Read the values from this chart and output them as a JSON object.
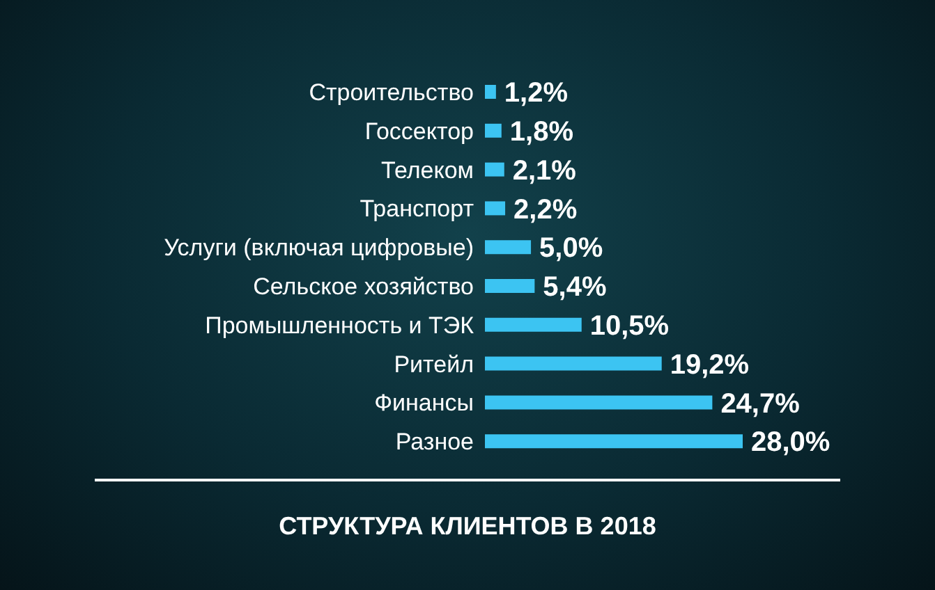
{
  "chart_data": {
    "type": "bar",
    "orientation": "horizontal",
    "title": "СТРУКТУРА КЛИЕНТОВ В 2018",
    "categories": [
      "Строительство",
      "Госсектор",
      "Телеком",
      "Транспорт",
      "Услуги (включая цифровые)",
      "Сельское хозяйство",
      "Промышленность и ТЭК",
      "Ритейл",
      "Финансы",
      "Разное"
    ],
    "values": [
      1.2,
      1.8,
      2.1,
      2.2,
      5.0,
      5.4,
      10.5,
      19.2,
      24.7,
      28.0
    ],
    "value_labels": [
      "1,2%",
      "1,8%",
      "2,1%",
      "2,2%",
      "5,0%",
      "5,4%",
      "10,5%",
      "19,2%",
      "24,7%",
      "28,0%"
    ],
    "color": "#3cc4f2"
  }
}
